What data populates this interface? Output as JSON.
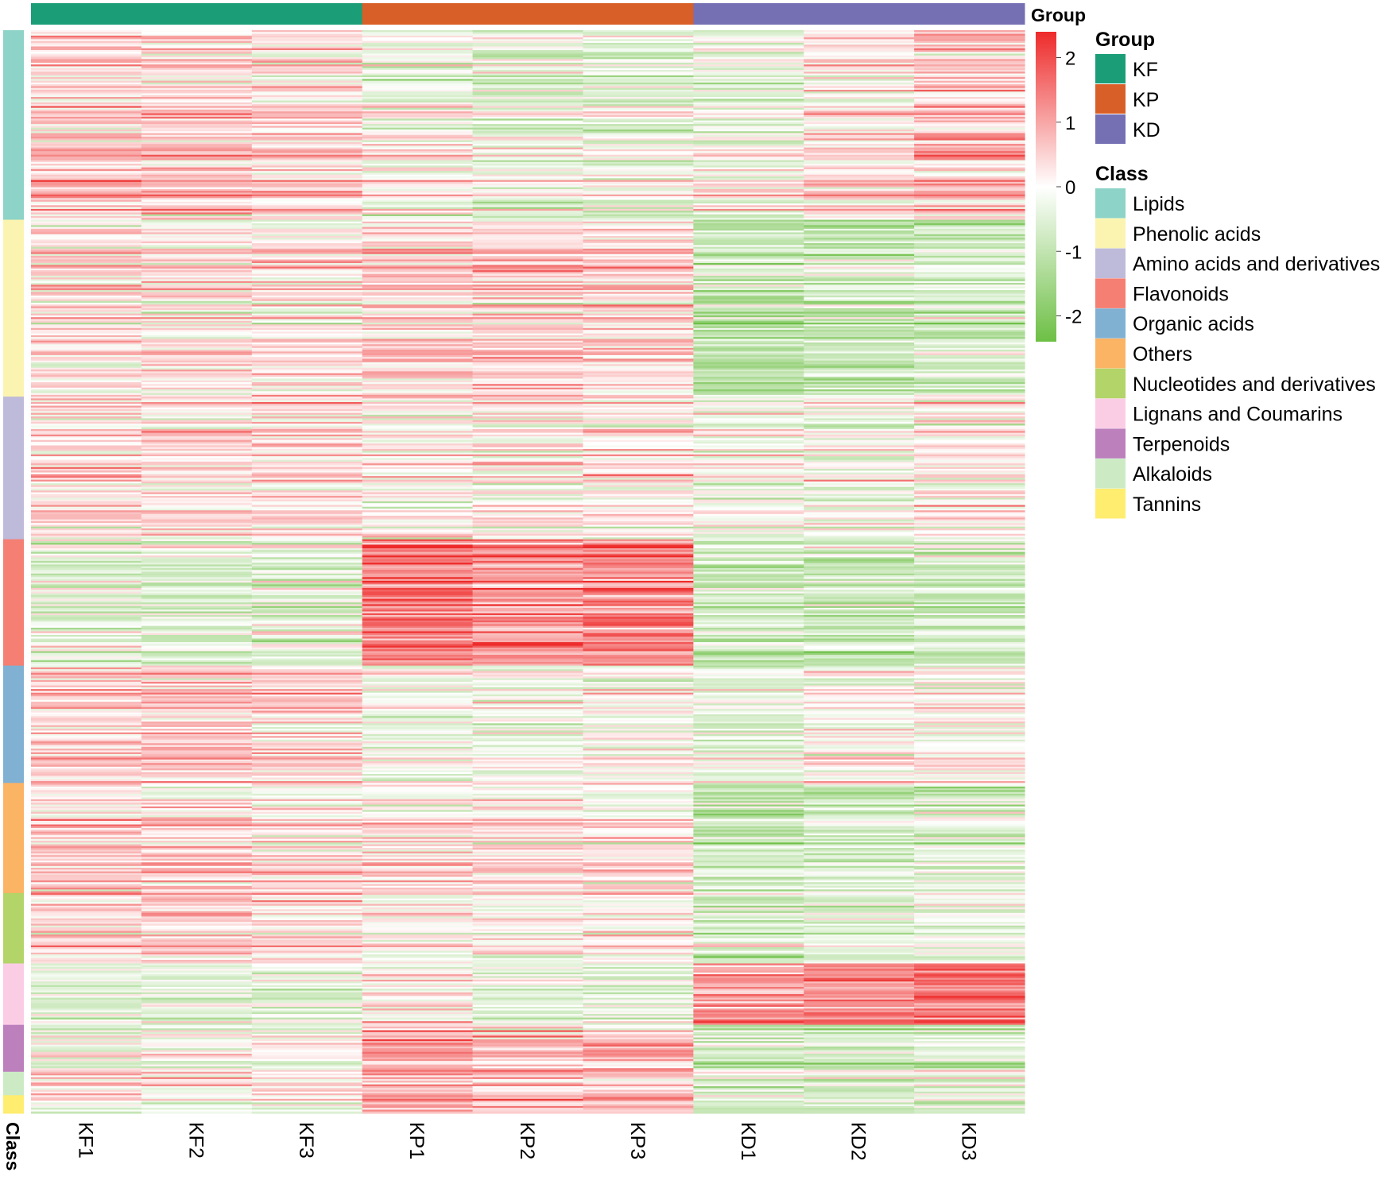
{
  "chart_data": {
    "type": "heatmap",
    "title": "",
    "samples": [
      "KF1",
      "KF2",
      "KF3",
      "KP1",
      "KP2",
      "KP3",
      "KD1",
      "KD2",
      "KD3"
    ],
    "group_annotation": {
      "title": "Group",
      "values": [
        "KF",
        "KF",
        "KF",
        "KP",
        "KP",
        "KP",
        "KD",
        "KD",
        "KD"
      ]
    },
    "row_annotation_label": "Class",
    "color_scale": {
      "min": -2.4,
      "max": 2.4,
      "colors": [
        "#6dbf45",
        "#ffffff",
        "#ee2a2a"
      ],
      "ticks": [
        2,
        1,
        0,
        -1,
        -2
      ],
      "tick_labels": [
        "2",
        "1",
        "0",
        "-1",
        "-2"
      ]
    },
    "legend": {
      "group": {
        "title": "Group",
        "items": [
          {
            "label": "KF",
            "color": "#1b9e77"
          },
          {
            "label": "KP",
            "color": "#d95f28"
          },
          {
            "label": "KD",
            "color": "#7570b3"
          }
        ]
      },
      "class": {
        "title": "Class",
        "items": [
          {
            "label": "Lipids",
            "color": "#8dd3c7"
          },
          {
            "label": "Phenolic acids",
            "color": "#fbf4b0"
          },
          {
            "label": "Amino acids and derivatives",
            "color": "#bebada"
          },
          {
            "label": "Flavonoids",
            "color": "#f47f72"
          },
          {
            "label": "Organic acids",
            "color": "#80b1d3"
          },
          {
            "label": "Others",
            "color": "#fbb364"
          },
          {
            "label": "Nucleotides and derivatives",
            "color": "#b3d468"
          },
          {
            "label": "Lignans and Coumarins",
            "color": "#fbcde5"
          },
          {
            "label": "Terpenoids",
            "color": "#bc80bd"
          },
          {
            "label": "Alkaloids",
            "color": "#ccebc5"
          },
          {
            "label": "Tannins",
            "color": "#ffed6f"
          }
        ]
      }
    },
    "class_blocks": [
      {
        "class": "Lipids",
        "fraction": 0.175,
        "means": [
          0.55,
          0.45,
          0.35,
          -0.1,
          -0.4,
          -0.45,
          -0.3,
          0.25,
          0.6
        ]
      },
      {
        "class": "Phenolic acids",
        "fraction": 0.163,
        "means": [
          0.35,
          0.25,
          0.2,
          0.55,
          0.55,
          0.45,
          -0.95,
          -0.85,
          -0.8
        ]
      },
      {
        "class": "Amino acids and derivatives",
        "fraction": 0.132,
        "means": [
          0.3,
          0.3,
          0.25,
          0.05,
          0.05,
          0.05,
          -0.3,
          -0.15,
          0.1
        ]
      },
      {
        "class": "Flavonoids",
        "fraction": 0.116,
        "means": [
          -0.35,
          -0.45,
          -0.45,
          1.55,
          1.25,
          1.4,
          -0.75,
          -0.75,
          -0.75
        ]
      },
      {
        "class": "Organic acids",
        "fraction": 0.108,
        "means": [
          0.45,
          0.45,
          0.35,
          -0.25,
          -0.2,
          -0.15,
          -0.35,
          -0.05,
          0.0
        ]
      },
      {
        "class": "Others",
        "fraction": 0.102,
        "means": [
          0.45,
          0.35,
          0.25,
          0.35,
          0.3,
          0.25,
          -0.85,
          -0.6,
          -0.5
        ]
      },
      {
        "class": "Nucleotides and derivatives",
        "fraction": 0.065,
        "means": [
          0.45,
          0.45,
          0.35,
          0.1,
          0.0,
          0.0,
          -0.65,
          -0.45,
          -0.3
        ]
      },
      {
        "class": "Lignans and Coumarins",
        "fraction": 0.057,
        "means": [
          -0.5,
          -0.5,
          -0.5,
          0.1,
          -0.4,
          -0.5,
          1.0,
          1.1,
          1.4
        ]
      },
      {
        "class": "Terpenoids",
        "fraction": 0.044,
        "means": [
          -0.05,
          0.0,
          0.0,
          1.05,
          0.75,
          0.85,
          -0.75,
          -0.65,
          -0.55
        ]
      },
      {
        "class": "Alkaloids",
        "fraction": 0.021,
        "means": [
          0.3,
          0.25,
          0.2,
          0.55,
          0.5,
          0.45,
          -0.65,
          -0.55,
          -0.4
        ]
      },
      {
        "class": "Tannins",
        "fraction": 0.017,
        "means": [
          -0.15,
          -0.15,
          -0.15,
          1.1,
          0.95,
          0.9,
          -0.6,
          -0.6,
          -0.6
        ]
      }
    ],
    "rows_total": 600,
    "grid": false
  }
}
